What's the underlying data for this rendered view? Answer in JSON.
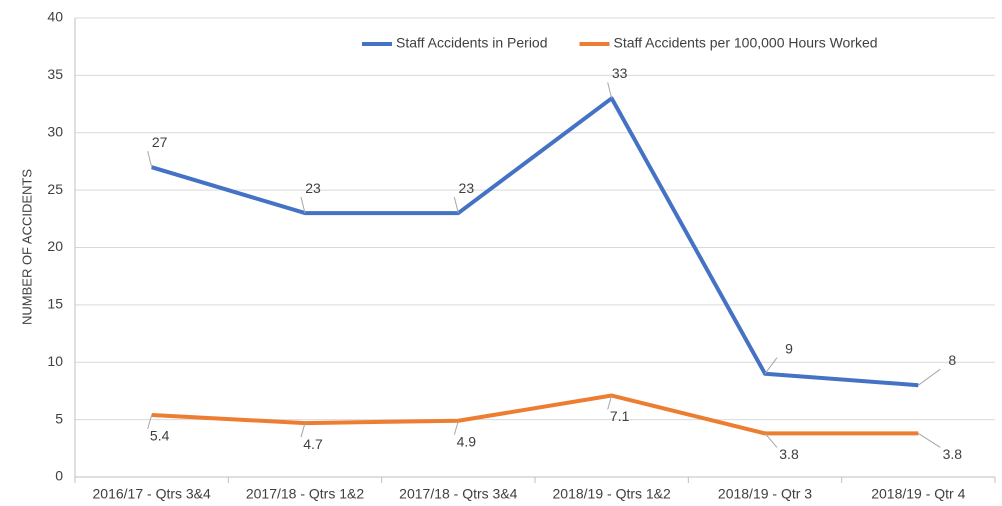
{
  "chart_data": {
    "type": "line",
    "y_axis_label": "NUMBER OF ACCIDENTS",
    "categories": [
      "2016/17 - Qtrs 3&4",
      "2017/18 - Qtrs 1&2",
      "2017/18 - Qtrs 3&4",
      "2018/19 - Qtrs 1&2",
      "2018/19 - Qtr 3",
      "2018/19 - Qtr 4"
    ],
    "series": [
      {
        "name": "Staff Accidents in Period",
        "color": "#4472c4",
        "values": [
          27,
          23,
          23,
          33,
          9,
          8
        ]
      },
      {
        "name": "Staff Accidents per 100,000 Hours Worked",
        "color": "#ed7d31",
        "values": [
          5.4,
          4.7,
          4.9,
          7.1,
          3.8,
          3.8
        ]
      }
    ],
    "ylim": [
      0,
      40
    ],
    "yticks": [
      0,
      5,
      10,
      15,
      20,
      25,
      30,
      35,
      40
    ],
    "grid": true,
    "legend": "top"
  }
}
